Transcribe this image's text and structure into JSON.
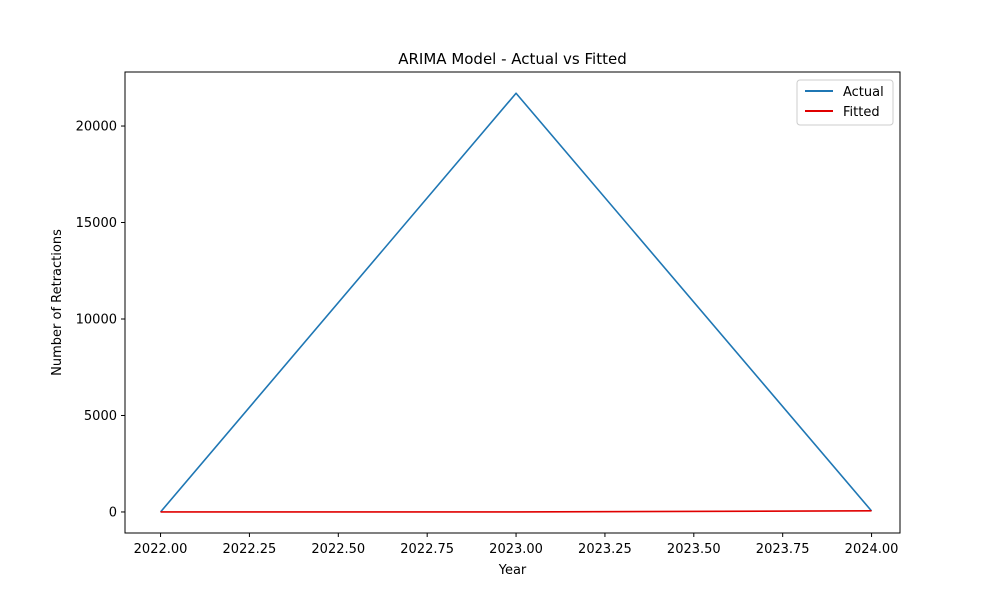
{
  "chart_data": {
    "type": "line",
    "title": "ARIMA Model - Actual vs Fitted",
    "xlabel": "Year",
    "ylabel": "Number of Retractions",
    "x": [
      2022,
      2023,
      2024
    ],
    "xlim": [
      2021.9,
      2024.08
    ],
    "ylim": [
      -1090,
      22800
    ],
    "xticks": [
      2022.0,
      2022.25,
      2022.5,
      2022.75,
      2023.0,
      2023.25,
      2023.5,
      2023.75,
      2024.0
    ],
    "xtick_labels": [
      "2022.00",
      "2022.25",
      "2022.50",
      "2022.75",
      "2023.00",
      "2023.25",
      "2023.50",
      "2023.75",
      "2024.00"
    ],
    "yticks": [
      0,
      5000,
      10000,
      15000,
      20000
    ],
    "ytick_labels": [
      "0",
      "5000",
      "10000",
      "15000",
      "20000"
    ],
    "grid": false,
    "legend_position": "top-right",
    "series": [
      {
        "name": "Actual",
        "color": "#1f77b4",
        "values": [
          0,
          21700,
          50
        ]
      },
      {
        "name": "Fitted",
        "color": "#e00000",
        "values": [
          0,
          0,
          60
        ]
      }
    ]
  }
}
